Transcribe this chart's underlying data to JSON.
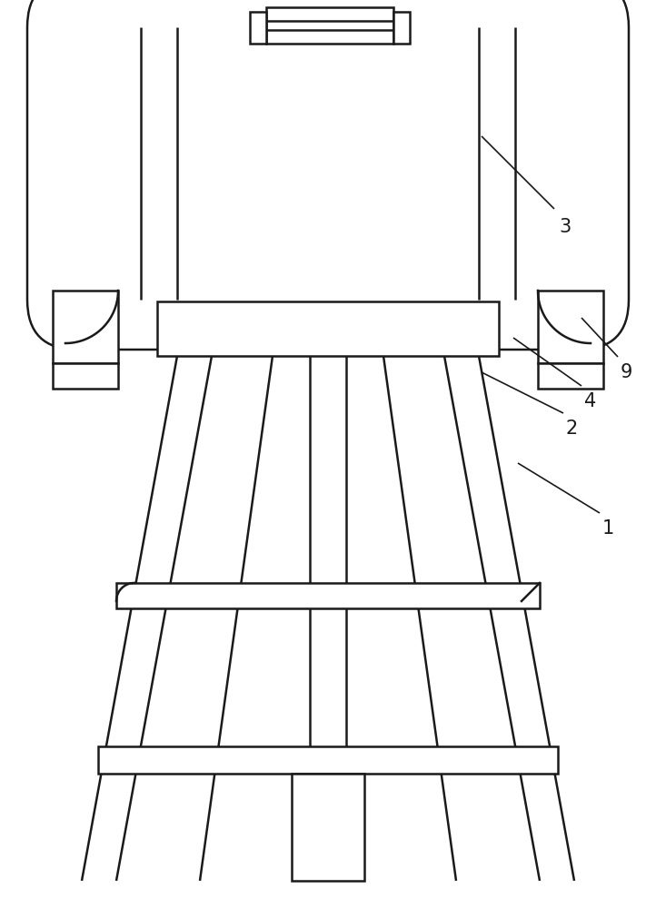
{
  "bg_color": "#ffffff",
  "line_color": "#1a1a1a",
  "line_width": 1.8,
  "thin_lw": 1.0,
  "fig_width": 7.22,
  "fig_height": 10.0,
  "dpi": 100
}
